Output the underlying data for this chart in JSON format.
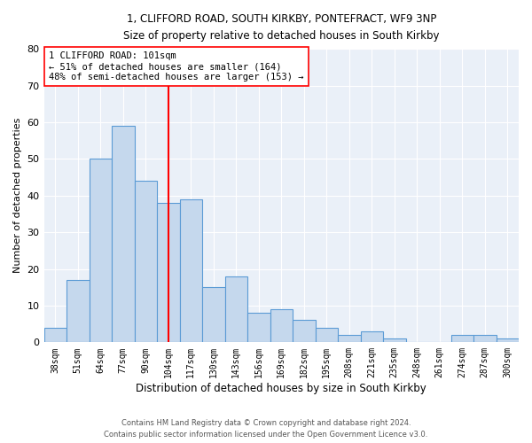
{
  "title_line1": "1, CLIFFORD ROAD, SOUTH KIRKBY, PONTEFRACT, WF9 3NP",
  "title_line2": "Size of property relative to detached houses in South Kirkby",
  "xlabel": "Distribution of detached houses by size in South Kirkby",
  "ylabel": "Number of detached properties",
  "categories": [
    "38sqm",
    "51sqm",
    "64sqm",
    "77sqm",
    "90sqm",
    "104sqm",
    "117sqm",
    "130sqm",
    "143sqm",
    "156sqm",
    "169sqm",
    "182sqm",
    "195sqm",
    "208sqm",
    "221sqm",
    "235sqm",
    "248sqm",
    "261sqm",
    "274sqm",
    "287sqm",
    "300sqm"
  ],
  "values": [
    4,
    17,
    50,
    59,
    44,
    38,
    39,
    15,
    18,
    8,
    9,
    6,
    4,
    2,
    3,
    1,
    0,
    0,
    2,
    2,
    1
  ],
  "bar_color": "#c5d8ed",
  "bar_edge_color": "#5b9bd5",
  "vline_x": 5.0,
  "vline_color": "red",
  "annotation_text": "1 CLIFFORD ROAD: 101sqm\n← 51% of detached houses are smaller (164)\n48% of semi-detached houses are larger (153) →",
  "annotation_box_color": "white",
  "annotation_box_edge": "red",
  "ylim": [
    0,
    80
  ],
  "yticks": [
    0,
    10,
    20,
    30,
    40,
    50,
    60,
    70,
    80
  ],
  "background_color": "#eaf0f8",
  "grid_color": "white",
  "footer_line1": "Contains HM Land Registry data © Crown copyright and database right 2024.",
  "footer_line2": "Contains public sector information licensed under the Open Government Licence v3.0."
}
